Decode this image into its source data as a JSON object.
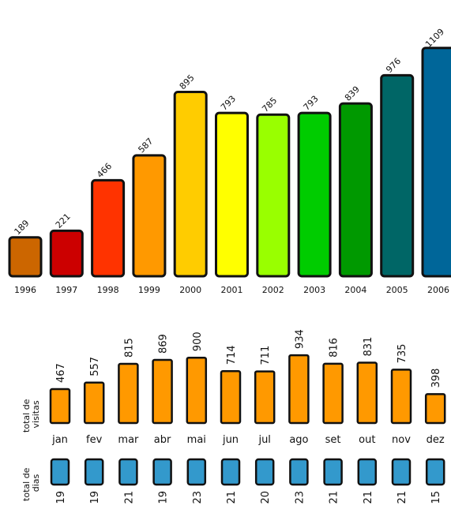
{
  "chart_data": [
    {
      "type": "bar",
      "categories": [
        "1996",
        "1997",
        "1998",
        "1999",
        "2000",
        "2001",
        "2002",
        "2003",
        "2004",
        "2005",
        "2006"
      ],
      "values": [
        189,
        221,
        466,
        587,
        895,
        793,
        785,
        793,
        839,
        976,
        1109
      ],
      "value_labels": [
        "189",
        "221",
        "466",
        "587",
        "895",
        "793",
        "785",
        "793",
        "839",
        "976",
        "1109"
      ],
      "colors": [
        "#cc6600",
        "#cc0000",
        "#ff3300",
        "#ff9900",
        "#ffcc00",
        "#ffff00",
        "#99ff00",
        "#00cc00",
        "#009900",
        "#006666",
        "#006699"
      ],
      "ylim": [
        0,
        1150
      ]
    },
    {
      "type": "bar",
      "ylabel": "total de visitas",
      "categories": [
        "jan",
        "fev",
        "mar",
        "abr",
        "mai",
        "jun",
        "jul",
        "ago",
        "set",
        "out",
        "nov",
        "dez"
      ],
      "values": [
        467,
        557,
        815,
        869,
        900,
        714,
        711,
        934,
        816,
        831,
        735,
        398
      ],
      "value_labels": [
        "467",
        "557",
        "815",
        "869",
        "900",
        "714",
        "711",
        "934",
        "816",
        "831",
        "735",
        "398"
      ],
      "color": "#ff9900",
      "ylim": [
        0,
        1000
      ]
    },
    {
      "type": "bar",
      "ylabel": "total de dias",
      "categories": [
        "jan",
        "fev",
        "mar",
        "abr",
        "mai",
        "jun",
        "jul",
        "ago",
        "set",
        "out",
        "nov",
        "dez"
      ],
      "values": [
        19,
        19,
        21,
        19,
        23,
        21,
        20,
        23,
        21,
        21,
        21,
        15
      ],
      "value_labels": [
        "19",
        "19",
        "21",
        "19",
        "23",
        "21",
        "20",
        "23",
        "21",
        "21",
        "21",
        "15"
      ],
      "color": "#3399cc"
    }
  ]
}
